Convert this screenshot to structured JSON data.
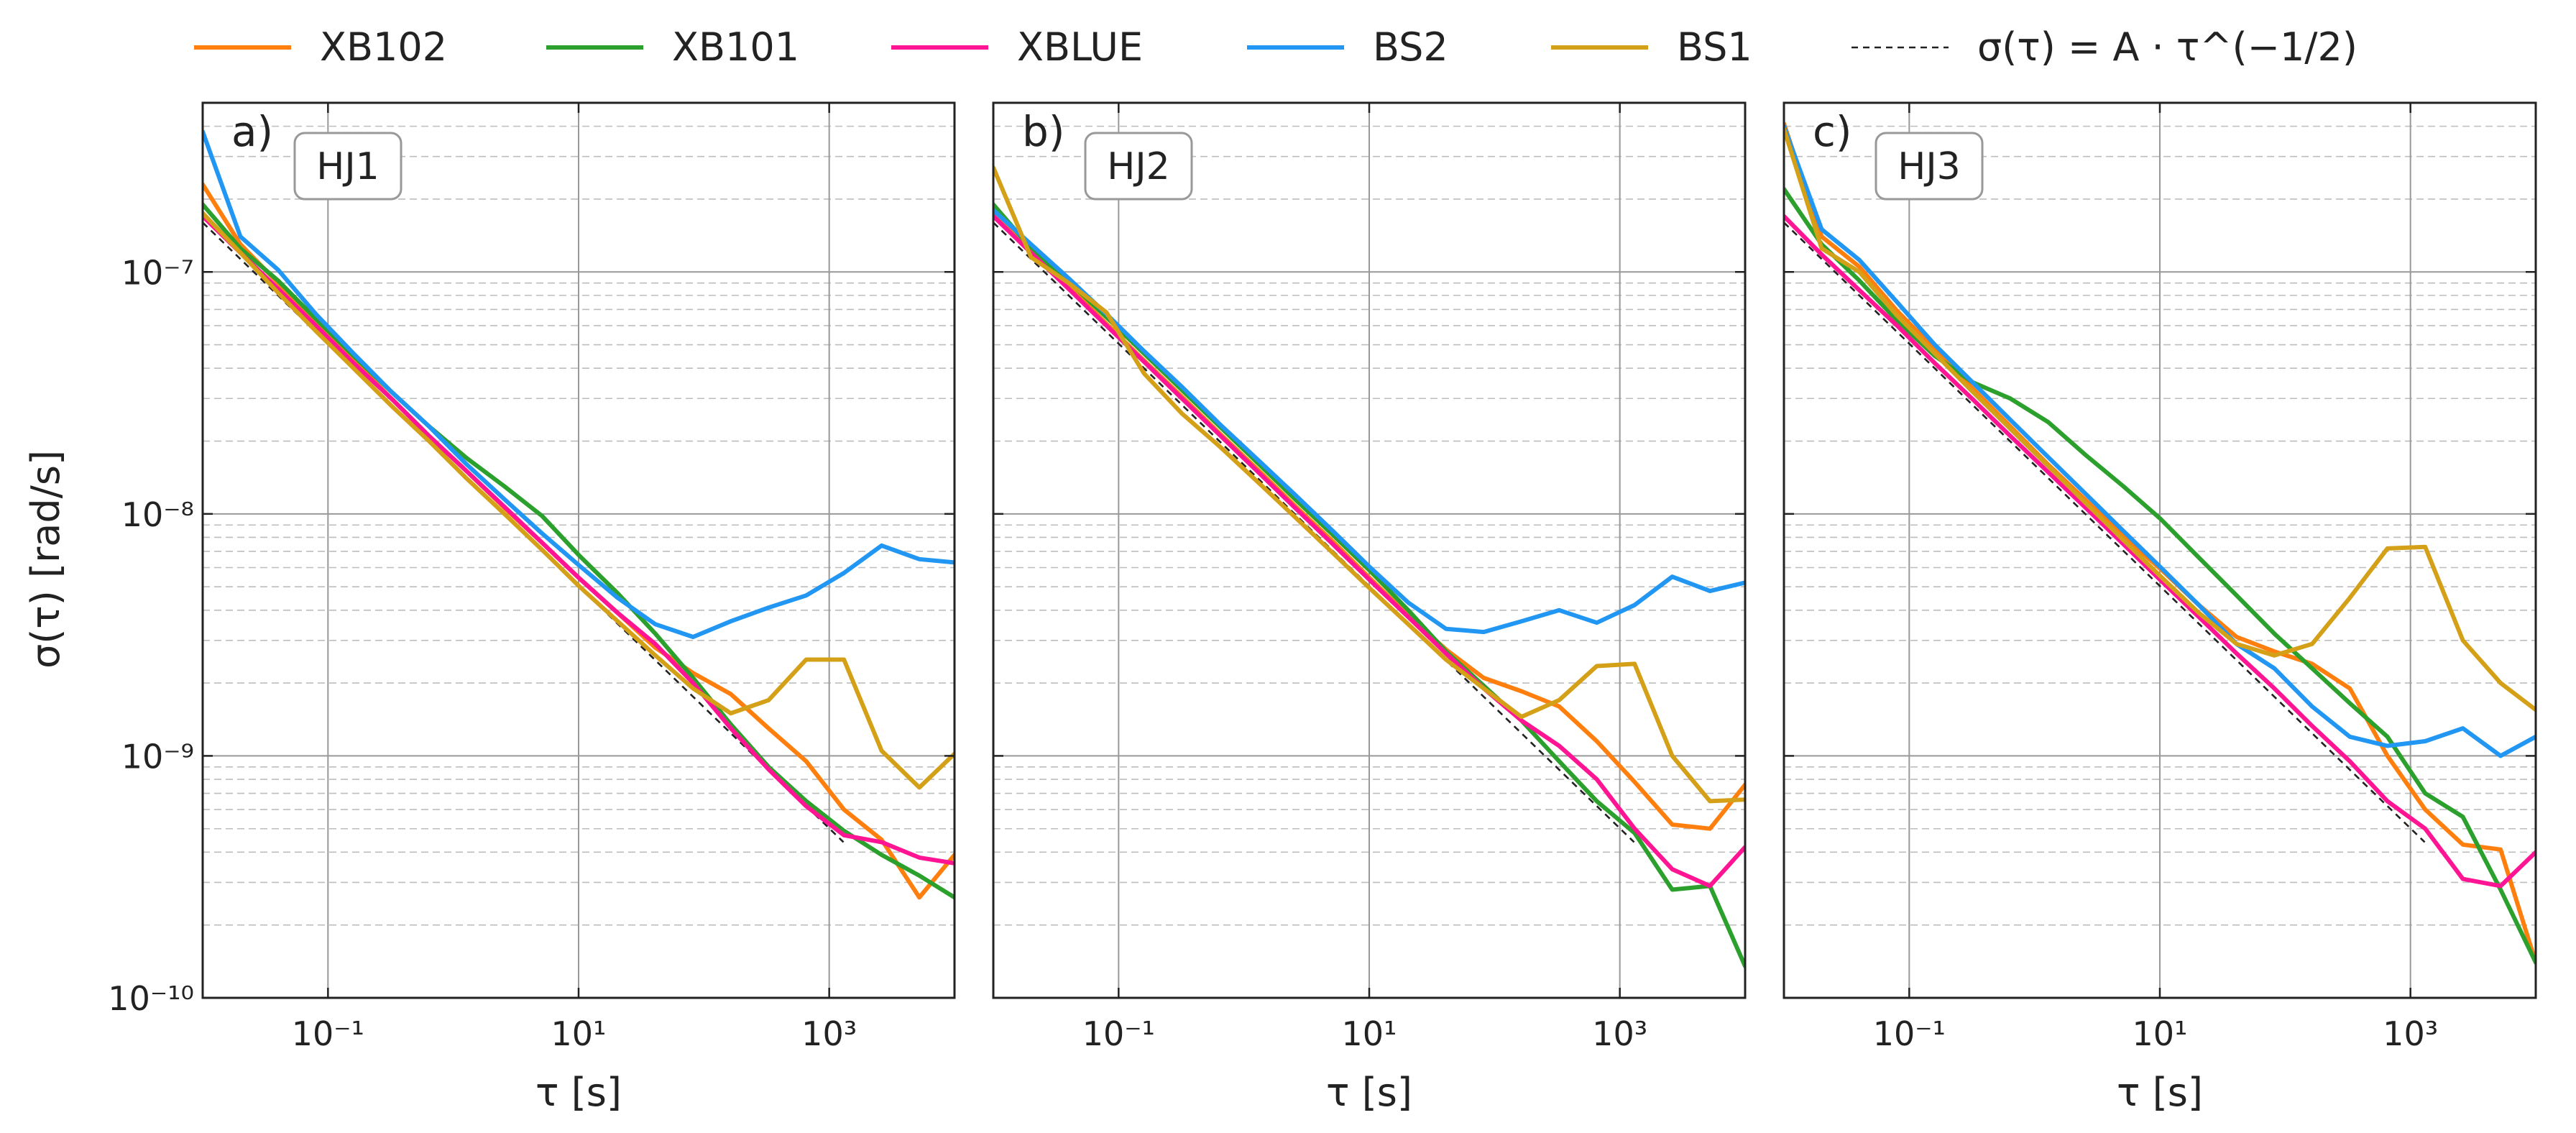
{
  "legend": [
    {
      "key": "XB102",
      "label": "XB102",
      "color": "#ff7f0e",
      "dashed": false
    },
    {
      "key": "XB101",
      "label": "XB101",
      "color": "#2ca02c",
      "dashed": false
    },
    {
      "key": "XBLUE",
      "label": "XBLUE",
      "color": "#ff1493",
      "dashed": false
    },
    {
      "key": "BS2",
      "label": "BS2",
      "color": "#2196f3",
      "dashed": false
    },
    {
      "key": "BS1",
      "label": "BS1",
      "color": "#d4a017",
      "dashed": false
    },
    {
      "key": "ref",
      "label": "σ(τ) = A · τ^(−1/2)",
      "color": "#222222",
      "dashed": true
    }
  ],
  "chart_data": [
    {
      "type": "line",
      "panel_label": "a)",
      "box_label": "HJ1",
      "xscale": "log",
      "yscale": "log",
      "xlim": [
        0.01,
        10000
      ],
      "ylim": [
        1e-10,
        5e-07
      ],
      "xlabel": "τ [s]",
      "ylabel": "σ(τ) [rad/s]",
      "x_ticks": [
        {
          "value": 0.1,
          "label": "10⁻¹"
        },
        {
          "value": 10,
          "label": "10¹"
        },
        {
          "value": 1000,
          "label": "10³"
        }
      ],
      "y_ticks": [
        {
          "value": 1e-07,
          "label": "10⁻⁷"
        },
        {
          "value": 1e-08,
          "label": "10⁻⁸"
        },
        {
          "value": 1e-09,
          "label": "10⁻⁹"
        },
        {
          "value": 1e-10,
          "label": "10⁻¹⁰"
        }
      ],
      "reference": {
        "x": [
          0.01,
          1300
        ],
        "y": [
          1.6e-07,
          4.4e-10
        ]
      },
      "series": [
        {
          "name": "XB102",
          "x": [
            0.01,
            0.02,
            0.04,
            0.08,
            0.16,
            0.32,
            0.64,
            1.28,
            2.56,
            5.12,
            10.2,
            20.5,
            41,
            82,
            164,
            328,
            655,
            1311,
            2621,
            5243,
            10000
          ],
          "y": [
            2.3e-07,
            1.3e-07,
            9e-08,
            6.2e-08,
            4.3e-08,
            3e-08,
            2.1e-08,
            1.5e-08,
            1.06e-08,
            7.6e-09,
            5.4e-09,
            3.9e-09,
            2.8e-09,
            2.2e-09,
            1.8e-09,
            1.3e-09,
            9.5e-10,
            6e-10,
            4.5e-10,
            2.6e-10,
            3.9e-10
          ]
        },
        {
          "name": "XB101",
          "x": [
            0.01,
            0.02,
            0.04,
            0.08,
            0.16,
            0.32,
            0.64,
            1.28,
            2.56,
            5.12,
            10.2,
            20.5,
            41,
            82,
            164,
            328,
            655,
            1311,
            2621,
            5243,
            10000
          ],
          "y": [
            1.9e-07,
            1.25e-07,
            9.2e-08,
            6.4e-08,
            4.5e-08,
            3.2e-08,
            2.3e-08,
            1.7e-08,
            1.3e-08,
            9.8e-09,
            6.7e-09,
            4.7e-09,
            3.2e-09,
            2.1e-09,
            1.35e-09,
            9e-10,
            6.5e-10,
            4.9e-10,
            3.9e-10,
            3.2e-10,
            2.6e-10
          ]
        },
        {
          "name": "XBLUE",
          "x": [
            0.01,
            0.02,
            0.04,
            0.08,
            0.16,
            0.32,
            0.64,
            1.28,
            2.56,
            5.12,
            10.2,
            20.5,
            41,
            82,
            164,
            328,
            655,
            1311,
            2621,
            5243,
            10000
          ],
          "y": [
            1.7e-07,
            1.2e-07,
            8.5e-08,
            6e-08,
            4.2e-08,
            3e-08,
            2.1e-08,
            1.5e-08,
            1.07e-08,
            7.6e-09,
            5.4e-09,
            3.9e-09,
            2.9e-09,
            2e-09,
            1.3e-09,
            8.8e-10,
            6.2e-10,
            4.7e-10,
            4.4e-10,
            3.8e-10,
            3.6e-10
          ]
        },
        {
          "name": "BS2",
          "x": [
            0.01,
            0.02,
            0.04,
            0.08,
            0.16,
            0.32,
            0.64,
            1.28,
            2.56,
            5.12,
            10.2,
            20.5,
            41,
            82,
            164,
            328,
            655,
            1311,
            2621,
            5243,
            10000
          ],
          "y": [
            3.8e-07,
            1.4e-07,
            1.02e-07,
            6.7e-08,
            4.6e-08,
            3.2e-08,
            2.3e-08,
            1.6e-08,
            1.15e-08,
            8.3e-09,
            6.1e-09,
            4.5e-09,
            3.5e-09,
            3.1e-09,
            3.6e-09,
            4.1e-09,
            4.6e-09,
            5.7e-09,
            7.4e-09,
            6.5e-09,
            6.3e-09
          ]
        },
        {
          "name": "BS1",
          "x": [
            0.01,
            0.02,
            0.04,
            0.08,
            0.16,
            0.32,
            0.64,
            1.28,
            2.56,
            5.12,
            10.2,
            20.5,
            41,
            82,
            164,
            328,
            655,
            1311,
            2621,
            5243,
            10000
          ],
          "y": [
            1.75e-07,
            1.2e-07,
            8.2e-08,
            5.7e-08,
            4e-08,
            2.8e-08,
            2e-08,
            1.4e-08,
            1e-08,
            7.1e-09,
            5e-09,
            3.6e-09,
            2.6e-09,
            1.9e-09,
            1.5e-09,
            1.7e-09,
            2.5e-09,
            2.5e-09,
            1.05e-09,
            7.4e-10,
            1.02e-09
          ]
        }
      ]
    },
    {
      "type": "line",
      "panel_label": "b)",
      "box_label": "HJ2",
      "xscale": "log",
      "yscale": "log",
      "xlim": [
        0.01,
        10000
      ],
      "ylim": [
        1e-10,
        5e-07
      ],
      "xlabel": "τ [s]",
      "ylabel": "",
      "x_ticks": [
        {
          "value": 0.1,
          "label": "10⁻¹"
        },
        {
          "value": 10,
          "label": "10¹"
        },
        {
          "value": 1000,
          "label": "10³"
        }
      ],
      "y_ticks": [],
      "reference": {
        "x": [
          0.01,
          1300
        ],
        "y": [
          1.6e-07,
          4.4e-10
        ]
      },
      "series": [
        {
          "name": "XB102",
          "x": [
            0.01,
            0.02,
            0.04,
            0.08,
            0.16,
            0.32,
            0.64,
            1.28,
            2.56,
            5.12,
            10.2,
            20.5,
            41,
            82,
            164,
            328,
            655,
            1311,
            2621,
            5243,
            10000
          ],
          "y": [
            1.75e-07,
            1.22e-07,
            8.7e-08,
            6.1e-08,
            4.3e-08,
            3.05e-08,
            2.15e-08,
            1.53e-08,
            1.08e-08,
            7.7e-09,
            5.4e-09,
            3.8e-09,
            2.75e-09,
            2.1e-09,
            1.85e-09,
            1.6e-09,
            1.15e-09,
            7.8e-10,
            5.2e-10,
            5e-10,
            7.6e-10
          ]
        },
        {
          "name": "XB101",
          "x": [
            0.01,
            0.02,
            0.04,
            0.08,
            0.16,
            0.32,
            0.64,
            1.28,
            2.56,
            5.12,
            10.2,
            20.5,
            41,
            82,
            164,
            328,
            655,
            1311,
            2621,
            5243,
            10000
          ],
          "y": [
            1.9e-07,
            1.25e-07,
            9.1e-08,
            6.5e-08,
            4.6e-08,
            3.25e-08,
            2.3e-08,
            1.63e-08,
            1.15e-08,
            8.2e-09,
            5.8e-09,
            4e-09,
            2.7e-09,
            1.95e-09,
            1.4e-09,
            9.5e-10,
            6.5e-10,
            4.8e-10,
            2.8e-10,
            2.9e-10,
            1.35e-10
          ]
        },
        {
          "name": "XBLUE",
          "x": [
            0.01,
            0.02,
            0.04,
            0.08,
            0.16,
            0.32,
            0.64,
            1.28,
            2.56,
            5.12,
            10.2,
            20.5,
            41,
            82,
            164,
            328,
            655,
            1311,
            2621,
            5243,
            10000
          ],
          "y": [
            1.7e-07,
            1.2e-07,
            8.5e-08,
            6e-08,
            4.25e-08,
            3e-08,
            2.12e-08,
            1.5e-08,
            1.06e-08,
            7.5e-09,
            5.3e-09,
            3.75e-09,
            2.65e-09,
            1.9e-09,
            1.4e-09,
            1.1e-09,
            8e-10,
            5e-10,
            3.4e-10,
            2.9e-10,
            4.2e-10
          ]
        },
        {
          "name": "BS2",
          "x": [
            0.01,
            0.02,
            0.04,
            0.08,
            0.16,
            0.32,
            0.64,
            1.28,
            2.56,
            5.12,
            10.2,
            20.5,
            41,
            82,
            164,
            328,
            655,
            1311,
            2621,
            5243,
            10000
          ],
          "y": [
            1.8e-07,
            1.3e-07,
            9.4e-08,
            6.7e-08,
            4.7e-08,
            3.35e-08,
            2.35e-08,
            1.68e-08,
            1.2e-08,
            8.5e-09,
            6e-09,
            4.3e-09,
            3.35e-09,
            3.25e-09,
            3.6e-09,
            4e-09,
            3.55e-09,
            4.2e-09,
            5.5e-09,
            4.8e-09,
            5.2e-09
          ]
        },
        {
          "name": "BS1",
          "x": [
            0.01,
            0.02,
            0.04,
            0.08,
            0.16,
            0.32,
            0.64,
            1.28,
            2.56,
            5.12,
            10.2,
            20.5,
            41,
            82,
            164,
            328,
            655,
            1311,
            2621,
            5243,
            10000
          ],
          "y": [
            2.7e-07,
            1.15e-07,
            9e-08,
            6.8e-08,
            3.8e-08,
            2.6e-08,
            1.9e-08,
            1.36e-08,
            9.7e-09,
            6.9e-09,
            4.9e-09,
            3.5e-09,
            2.5e-09,
            1.9e-09,
            1.45e-09,
            1.7e-09,
            2.35e-09,
            2.4e-09,
            1e-09,
            6.5e-10,
            6.6e-10
          ]
        }
      ]
    },
    {
      "type": "line",
      "panel_label": "c)",
      "box_label": "HJ3",
      "xscale": "log",
      "yscale": "log",
      "xlim": [
        0.01,
        10000
      ],
      "ylim": [
        1e-10,
        5e-07
      ],
      "xlabel": "τ [s]",
      "ylabel": "",
      "x_ticks": [
        {
          "value": 0.1,
          "label": "10⁻¹"
        },
        {
          "value": 10,
          "label": "10¹"
        },
        {
          "value": 1000,
          "label": "10³"
        }
      ],
      "y_ticks": [],
      "reference": {
        "x": [
          0.01,
          1300
        ],
        "y": [
          1.6e-07,
          4.4e-10
        ]
      },
      "series": [
        {
          "name": "XB102",
          "x": [
            0.01,
            0.02,
            0.04,
            0.08,
            0.16,
            0.32,
            0.64,
            1.28,
            2.56,
            5.12,
            10.2,
            20.5,
            41,
            82,
            164,
            328,
            655,
            1311,
            2621,
            5243,
            10000
          ],
          "y": [
            4.1e-07,
            1.4e-07,
            1.05e-07,
            6.9e-08,
            4.8e-08,
            3.3e-08,
            2.3e-08,
            1.6e-08,
            1.14e-08,
            8.1e-09,
            5.9e-09,
            4.2e-09,
            3.1e-09,
            2.7e-09,
            2.4e-09,
            1.9e-09,
            1e-09,
            6e-10,
            4.3e-10,
            4.1e-10,
            1.4e-10
          ]
        },
        {
          "name": "XB101",
          "x": [
            0.01,
            0.02,
            0.04,
            0.08,
            0.16,
            0.32,
            0.64,
            1.28,
            2.56,
            5.12,
            10.2,
            20.5,
            41,
            82,
            164,
            328,
            655,
            1311,
            2621,
            5243,
            10000
          ],
          "y": [
            2.2e-07,
            1.3e-07,
            9.2e-08,
            6.3e-08,
            4.5e-08,
            3.5e-08,
            3e-08,
            2.4e-08,
            1.75e-08,
            1.3e-08,
            9.5e-09,
            6.6e-09,
            4.6e-09,
            3.2e-09,
            2.3e-09,
            1.65e-09,
            1.2e-09,
            7e-10,
            5.6e-10,
            2.8e-10,
            1.4e-10
          ]
        },
        {
          "name": "XBLUE",
          "x": [
            0.01,
            0.02,
            0.04,
            0.08,
            0.16,
            0.32,
            0.64,
            1.28,
            2.56,
            5.12,
            10.2,
            20.5,
            41,
            82,
            164,
            328,
            655,
            1311,
            2621,
            5243,
            10000
          ],
          "y": [
            1.7e-07,
            1.18e-07,
            8.4e-08,
            6e-08,
            4.2e-08,
            2.98e-08,
            2.1e-08,
            1.49e-08,
            1.06e-08,
            7.5e-09,
            5.3e-09,
            3.75e-09,
            2.65e-09,
            1.9e-09,
            1.33e-09,
            9.5e-10,
            6.5e-10,
            5e-10,
            3.1e-10,
            2.9e-10,
            4e-10
          ]
        },
        {
          "name": "BS2",
          "x": [
            0.01,
            0.02,
            0.04,
            0.08,
            0.16,
            0.32,
            0.64,
            1.28,
            2.56,
            5.12,
            10.2,
            20.5,
            41,
            82,
            164,
            328,
            655,
            1311,
            2621,
            5243,
            10000
          ],
          "y": [
            4e-07,
            1.5e-07,
            1.12e-07,
            7.5e-08,
            5e-08,
            3.5e-08,
            2.45e-08,
            1.72e-08,
            1.21e-08,
            8.5e-09,
            6e-09,
            4.2e-09,
            2.9e-09,
            2.3e-09,
            1.6e-09,
            1.2e-09,
            1.1e-09,
            1.15e-09,
            1.3e-09,
            1e-09,
            1.2e-09
          ]
        },
        {
          "name": "BS1",
          "x": [
            0.01,
            0.02,
            0.04,
            0.08,
            0.16,
            0.32,
            0.64,
            1.28,
            2.56,
            5.12,
            10.2,
            20.5,
            41,
            82,
            164,
            328,
            655,
            1311,
            2621,
            5243,
            10000
          ],
          "y": [
            3.9e-07,
            1.25e-07,
            1e-07,
            6.6e-08,
            4.6e-08,
            3.2e-08,
            2.25e-08,
            1.58e-08,
            1.11e-08,
            7.8e-09,
            5.5e-09,
            3.9e-09,
            2.9e-09,
            2.6e-09,
            2.9e-09,
            4.5e-09,
            7.2e-09,
            7.3e-09,
            3e-09,
            2e-09,
            1.55e-09
          ]
        }
      ]
    }
  ]
}
